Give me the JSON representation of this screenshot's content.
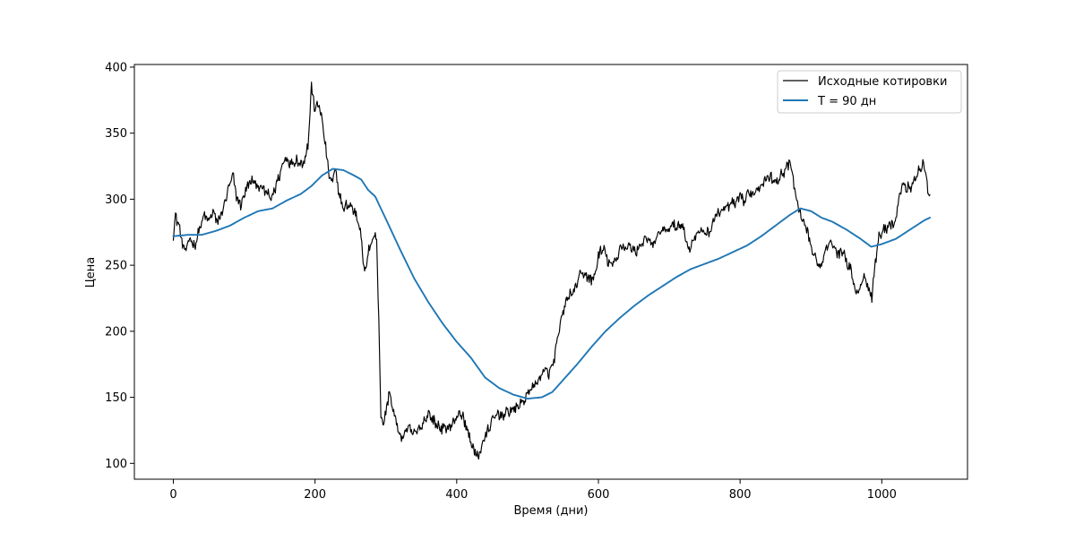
{
  "chart_data": {
    "type": "line",
    "title": "",
    "xlabel": "Время (дни)",
    "ylabel": "Цена",
    "xlim": [
      -55,
      1121
    ],
    "ylim": [
      88,
      402
    ],
    "xticks": [
      0,
      200,
      400,
      600,
      800,
      1000
    ],
    "yticks": [
      100,
      150,
      200,
      250,
      300,
      350,
      400
    ],
    "xtick_labels": [
      "0",
      "200",
      "400",
      "600",
      "800",
      "1000"
    ],
    "ytick_labels": [
      "100",
      "150",
      "200",
      "250",
      "300",
      "350",
      "400"
    ],
    "grid": false,
    "legend_position": "top-right",
    "series": [
      {
        "name": "Исходные котировки",
        "color": "#000000",
        "style": "noisy",
        "points": [
          [
            0,
            272
          ],
          [
            3,
            288
          ],
          [
            8,
            280
          ],
          [
            12,
            268
          ],
          [
            17,
            260
          ],
          [
            24,
            271
          ],
          [
            30,
            264
          ],
          [
            36,
            276
          ],
          [
            44,
            288
          ],
          [
            50,
            283
          ],
          [
            56,
            291
          ],
          [
            62,
            282
          ],
          [
            70,
            292
          ],
          [
            78,
            308
          ],
          [
            84,
            318
          ],
          [
            90,
            300
          ],
          [
            96,
            296
          ],
          [
            102,
            307
          ],
          [
            110,
            314
          ],
          [
            120,
            310
          ],
          [
            130,
            306
          ],
          [
            138,
            300
          ],
          [
            146,
            312
          ],
          [
            152,
            322
          ],
          [
            158,
            332
          ],
          [
            166,
            327
          ],
          [
            174,
            330
          ],
          [
            182,
            326
          ],
          [
            190,
            340
          ],
          [
            195,
            385
          ],
          [
            200,
            368
          ],
          [
            206,
            372
          ],
          [
            212,
            352
          ],
          [
            216,
            334
          ],
          [
            220,
            318
          ],
          [
            224,
            312
          ],
          [
            228,
            322
          ],
          [
            234,
            305
          ],
          [
            240,
            292
          ],
          [
            246,
            296
          ],
          [
            252,
            294
          ],
          [
            258,
            288
          ],
          [
            264,
            278
          ],
          [
            270,
            242
          ],
          [
            276,
            262
          ],
          [
            282,
            272
          ],
          [
            287,
            270
          ],
          [
            290,
            210
          ],
          [
            293,
            135
          ],
          [
            297,
            130
          ],
          [
            301,
            142
          ],
          [
            305,
            155
          ],
          [
            310,
            140
          ],
          [
            316,
            128
          ],
          [
            322,
            118
          ],
          [
            330,
            127
          ],
          [
            340,
            122
          ],
          [
            350,
            128
          ],
          [
            360,
            138
          ],
          [
            370,
            130
          ],
          [
            380,
            126
          ],
          [
            390,
            128
          ],
          [
            398,
            132
          ],
          [
            404,
            140
          ],
          [
            412,
            130
          ],
          [
            418,
            120
          ],
          [
            424,
            110
          ],
          [
            430,
            104
          ],
          [
            436,
            115
          ],
          [
            442,
            122
          ],
          [
            450,
            132
          ],
          [
            458,
            138
          ],
          [
            466,
            136
          ],
          [
            474,
            140
          ],
          [
            482,
            141
          ],
          [
            490,
            145
          ],
          [
            498,
            150
          ],
          [
            506,
            158
          ],
          [
            512,
            160
          ],
          [
            518,
            166
          ],
          [
            524,
            170
          ],
          [
            530,
            168
          ],
          [
            536,
            175
          ],
          [
            542,
            192
          ],
          [
            548,
            210
          ],
          [
            554,
            222
          ],
          [
            560,
            228
          ],
          [
            566,
            230
          ],
          [
            572,
            240
          ],
          [
            578,
            244
          ],
          [
            584,
            242
          ],
          [
            590,
            238
          ],
          [
            596,
            244
          ],
          [
            600,
            258
          ],
          [
            608,
            262
          ],
          [
            614,
            252
          ],
          [
            620,
            250
          ],
          [
            626,
            255
          ],
          [
            632,
            266
          ],
          [
            638,
            262
          ],
          [
            644,
            265
          ],
          [
            652,
            260
          ],
          [
            660,
            266
          ],
          [
            668,
            270
          ],
          [
            676,
            265
          ],
          [
            684,
            272
          ],
          [
            690,
            278
          ],
          [
            696,
            275
          ],
          [
            702,
            280
          ],
          [
            710,
            279
          ],
          [
            718,
            282
          ],
          [
            724,
            268
          ],
          [
            728,
            262
          ],
          [
            734,
            270
          ],
          [
            740,
            274
          ],
          [
            748,
            276
          ],
          [
            756,
            274
          ],
          [
            764,
            286
          ],
          [
            770,
            290
          ],
          [
            776,
            292
          ],
          [
            782,
            294
          ],
          [
            788,
            297
          ],
          [
            794,
            296
          ],
          [
            800,
            302
          ],
          [
            806,
            298
          ],
          [
            812,
            305
          ],
          [
            818,
            304
          ],
          [
            824,
            308
          ],
          [
            830,
            312
          ],
          [
            836,
            315
          ],
          [
            842,
            318
          ],
          [
            848,
            312
          ],
          [
            854,
            316
          ],
          [
            860,
            320
          ],
          [
            866,
            324
          ],
          [
            870,
            328
          ],
          [
            874,
            318
          ],
          [
            878,
            304
          ],
          [
            884,
            290
          ],
          [
            890,
            282
          ],
          [
            896,
            275
          ],
          [
            902,
            260
          ],
          [
            908,
            254
          ],
          [
            914,
            248
          ],
          [
            920,
            258
          ],
          [
            926,
            270
          ],
          [
            932,
            264
          ],
          [
            940,
            258
          ],
          [
            946,
            262
          ],
          [
            952,
            250
          ],
          [
            958,
            245
          ],
          [
            962,
            232
          ],
          [
            966,
            228
          ],
          [
            970,
            236
          ],
          [
            976,
            242
          ],
          [
            982,
            232
          ],
          [
            986,
            226
          ],
          [
            990,
            248
          ],
          [
            995,
            270
          ],
          [
            1000,
            275
          ],
          [
            1006,
            278
          ],
          [
            1012,
            283
          ],
          [
            1018,
            280
          ],
          [
            1024,
            300
          ],
          [
            1030,
            312
          ],
          [
            1036,
            308
          ],
          [
            1042,
            310
          ],
          [
            1048,
            318
          ],
          [
            1054,
            322
          ],
          [
            1058,
            326
          ],
          [
            1062,
            320
          ],
          [
            1066,
            302
          ],
          [
            1068,
            308
          ]
        ]
      },
      {
        "name": "T = 90 дн",
        "color": "#1f77b4",
        "style": "smooth",
        "points": [
          [
            0,
            272
          ],
          [
            20,
            273
          ],
          [
            40,
            273
          ],
          [
            60,
            276
          ],
          [
            80,
            280
          ],
          [
            100,
            286
          ],
          [
            120,
            291
          ],
          [
            140,
            293
          ],
          [
            160,
            299
          ],
          [
            180,
            304
          ],
          [
            195,
            310
          ],
          [
            210,
            318
          ],
          [
            225,
            323
          ],
          [
            240,
            322
          ],
          [
            255,
            318
          ],
          [
            265,
            315
          ],
          [
            275,
            307
          ],
          [
            285,
            302
          ],
          [
            300,
            285
          ],
          [
            320,
            262
          ],
          [
            340,
            240
          ],
          [
            360,
            222
          ],
          [
            380,
            206
          ],
          [
            400,
            192
          ],
          [
            420,
            180
          ],
          [
            440,
            165
          ],
          [
            460,
            157
          ],
          [
            480,
            152
          ],
          [
            500,
            149
          ],
          [
            520,
            150
          ],
          [
            535,
            154
          ],
          [
            550,
            163
          ],
          [
            570,
            175
          ],
          [
            590,
            188
          ],
          [
            610,
            200
          ],
          [
            630,
            210
          ],
          [
            650,
            219
          ],
          [
            670,
            227
          ],
          [
            690,
            234
          ],
          [
            710,
            241
          ],
          [
            730,
            247
          ],
          [
            750,
            251
          ],
          [
            770,
            255
          ],
          [
            790,
            260
          ],
          [
            810,
            265
          ],
          [
            830,
            272
          ],
          [
            850,
            280
          ],
          [
            870,
            288
          ],
          [
            885,
            293
          ],
          [
            900,
            291
          ],
          [
            915,
            286
          ],
          [
            930,
            283
          ],
          [
            950,
            277
          ],
          [
            970,
            270
          ],
          [
            985,
            264
          ],
          [
            1000,
            266
          ],
          [
            1020,
            270
          ],
          [
            1040,
            277
          ],
          [
            1060,
            284
          ],
          [
            1068,
            286
          ]
        ]
      }
    ]
  }
}
